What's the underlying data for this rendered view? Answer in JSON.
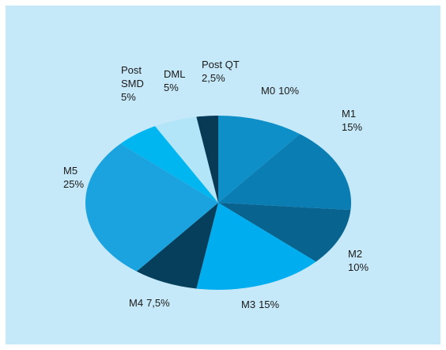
{
  "chart_data": {
    "type": "pie",
    "categories": [
      "M0",
      "M1",
      "M2",
      "M3",
      "M4",
      "M5",
      "Post SMD",
      "DML",
      "Post QT"
    ],
    "values": [
      10,
      15,
      10,
      15,
      7.5,
      25,
      5,
      5,
      2.5
    ],
    "value_labels": [
      "10%",
      "15%",
      "10%",
      "15%",
      "7,5%",
      "25%",
      "5%",
      "5%",
      "2,5%"
    ],
    "colors": [
      "#0e8fc8",
      "#0a7db2",
      "#08648f",
      "#00aeef",
      "#053f5c",
      "#1ba3e0",
      "#00b6f1",
      "#b3e5f9",
      "#083a56"
    ]
  }
}
